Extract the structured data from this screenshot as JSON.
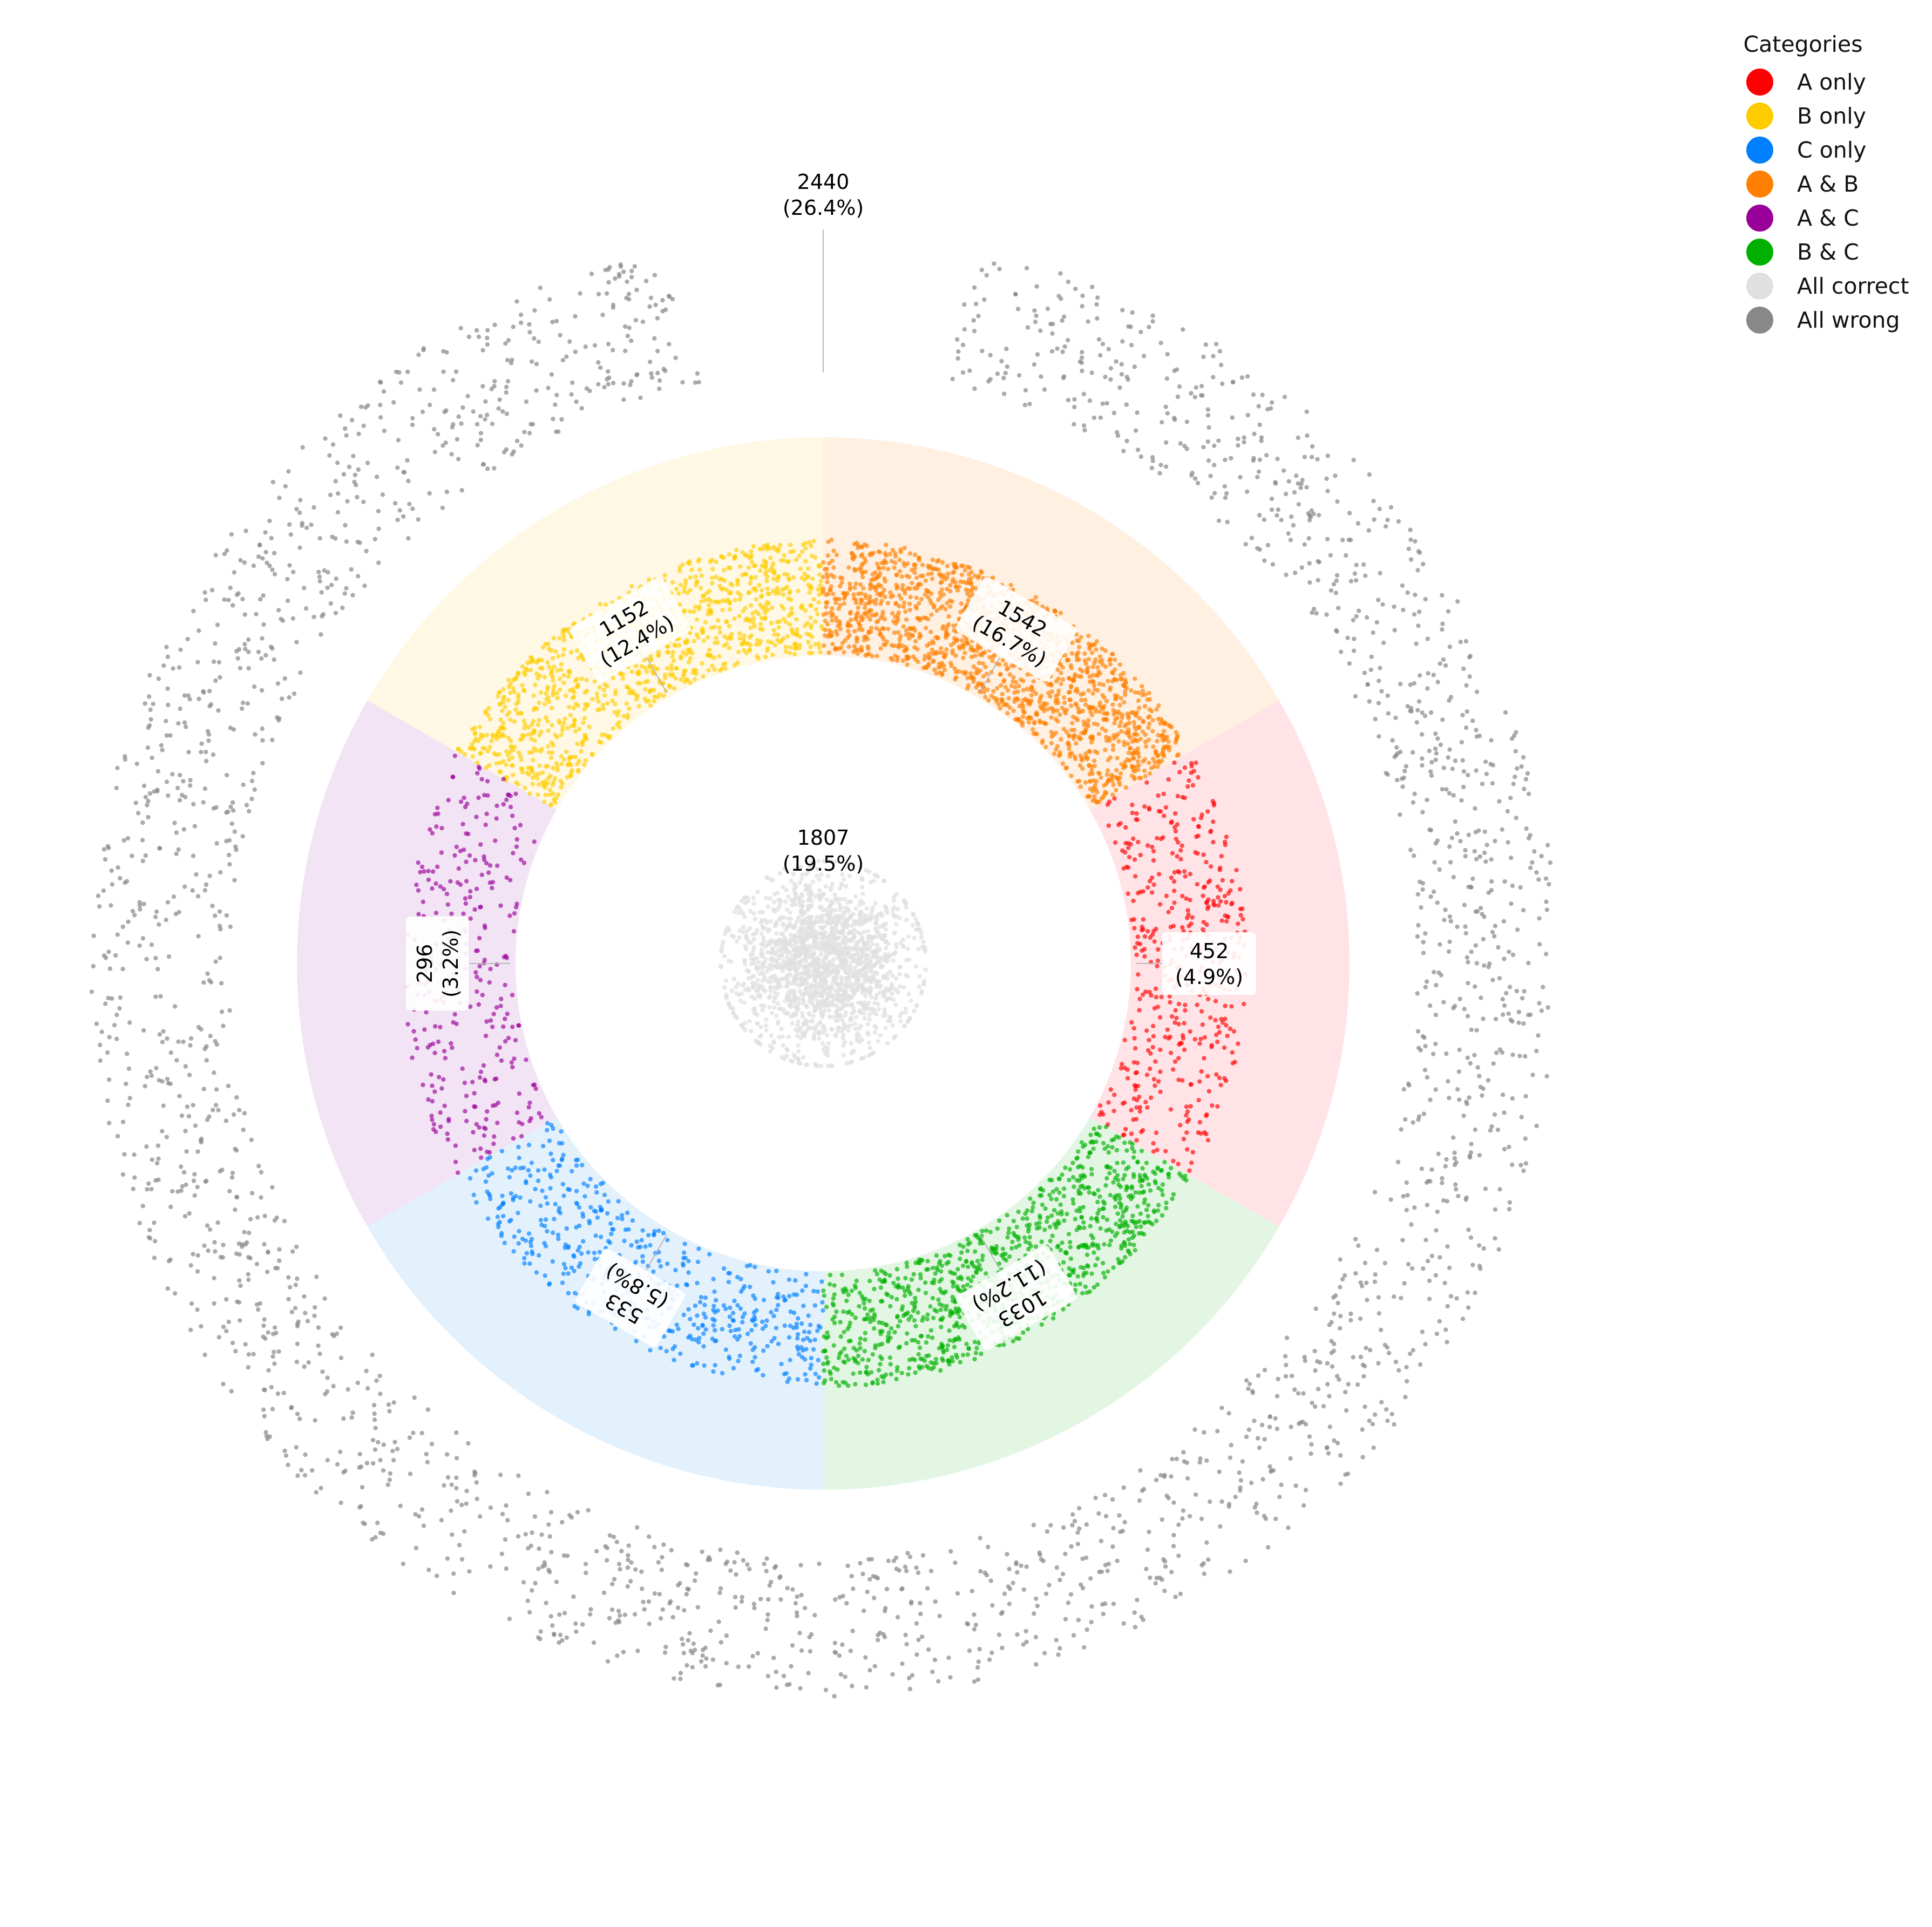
{
  "chart_data": {
    "type": "scatter",
    "subtype": "radial-venn-jitter",
    "legend": {
      "title": "Categories",
      "placement": "top-right"
    },
    "categories": [
      {
        "key": "a_only",
        "name": "A only",
        "color": "#ff0000",
        "count": 452,
        "percent_label": "(4.9%)",
        "ring": "inner",
        "center_angle_deg": 90
      },
      {
        "key": "b_only",
        "name": "B only",
        "color": "#ffcc00",
        "count": 1152,
        "percent_label": "(12.4%)",
        "ring": "inner",
        "center_angle_deg": -30
      },
      {
        "key": "c_only",
        "name": "C only",
        "color": "#0080ff",
        "count": 533,
        "percent_label": "(5.8%)",
        "ring": "inner",
        "center_angle_deg": 210
      },
      {
        "key": "a_b",
        "name": "A & B",
        "color": "#ff8000",
        "count": 1542,
        "percent_label": "(16.7%)",
        "ring": "inner",
        "center_angle_deg": 30
      },
      {
        "key": "a_c",
        "name": "A & C",
        "color": "#990099",
        "count": 296,
        "percent_label": "(3.2%)",
        "ring": "inner",
        "center_angle_deg": 270
      },
      {
        "key": "b_c",
        "name": "B & C",
        "color": "#00b000",
        "count": 1033,
        "percent_label": "(11.2%)",
        "ring": "inner",
        "center_angle_deg": 150
      },
      {
        "key": "all_correct",
        "name": "All correct",
        "color": "#e0e0e0",
        "count": 1807,
        "percent_label": "(19.5%)",
        "ring": "center",
        "center_angle_deg": 0
      },
      {
        "key": "all_wrong",
        "name": "All wrong",
        "color": "#888888",
        "count": 2440,
        "percent_label": "(26.4%)",
        "ring": "outer",
        "center_angle_deg": 0
      }
    ],
    "sector_background_colors": {
      "a_only": "#ffe3e6",
      "a_b": "#fff0e2",
      "b_only": "#fff8e5",
      "a_c": "#f2e4f4",
      "c_only": "#e3f1fd",
      "b_c": "#e3f6e3"
    },
    "grid": false,
    "axes": "off"
  }
}
